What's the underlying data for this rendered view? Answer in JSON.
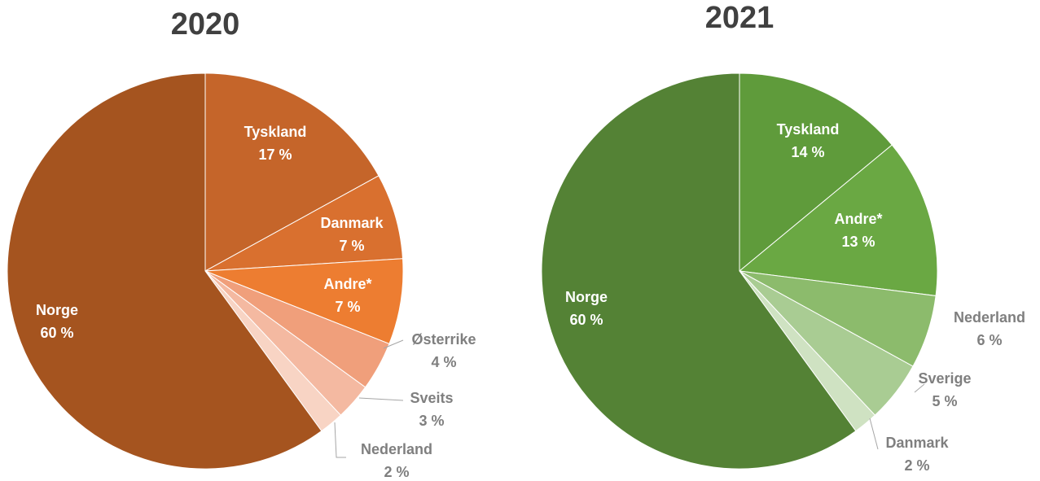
{
  "chart_data": [
    {
      "type": "pie",
      "title": "2020",
      "categories": [
        "Tyskland",
        "Danmark",
        "Andre*",
        "Østerrike",
        "Sveits",
        "Nederland",
        "Norge"
      ],
      "values": [
        17,
        7,
        7,
        4,
        3,
        2,
        60
      ],
      "value_labels": [
        "17 %",
        "7 %",
        "7 %",
        "4 %",
        "3 %",
        "2 %",
        "60 %"
      ],
      "colors": [
        "#c5652a",
        "#d9702f",
        "#ed7d31",
        "#f09f7b",
        "#f4b9a1",
        "#f8d4c4",
        "#a5541f"
      ]
    },
    {
      "type": "pie",
      "title": "2021",
      "categories": [
        "Tyskland",
        "Andre*",
        "Nederland",
        "Sverige",
        "Danmark",
        "Norge"
      ],
      "values": [
        14,
        13,
        6,
        5,
        2,
        60
      ],
      "value_labels": [
        "14 %",
        "13 %",
        "6 %",
        "5 %",
        "2 %",
        "60 %"
      ],
      "colors": [
        "#5f9b3b",
        "#6aa843",
        "#8cbb6c",
        "#a9cc93",
        "#cfe2c2",
        "#548235"
      ]
    }
  ]
}
